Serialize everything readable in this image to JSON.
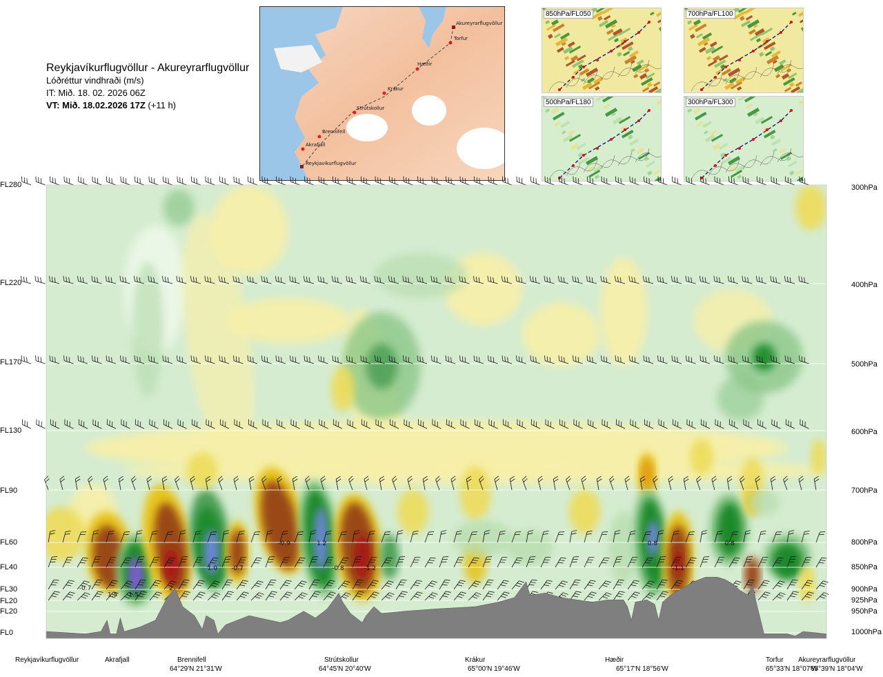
{
  "header": {
    "route": "Reykjavíkurflugvöllur - Akureyrarflugvöllur",
    "parameter": "Lóðréttur vindhraði (m/s)",
    "init_time": "IT: Mið. 18. 02. 2026 06Z",
    "valid_time": "VT: Mið. 18.02.2026 17Z",
    "lead": "(+11 h)"
  },
  "route_map": {
    "waypoints": [
      "Akureyrarflugvöllur",
      "Torfur",
      "Hæðir",
      "Krákur",
      "Strútskollur",
      "Brennifell",
      "Akrafjall",
      "Reykjavíkurflugvöllur"
    ]
  },
  "level_maps": [
    {
      "label": "850hPa/FL050"
    },
    {
      "label": "700hPa/FL100"
    },
    {
      "label": "500hPa/FL180"
    },
    {
      "label": "300hPa/FL300"
    }
  ],
  "chart_data": {
    "type": "heatmap",
    "title": "Lóðréttur vindhraði (m/s)",
    "flight_levels": [
      {
        "label": "FL280",
        "hpa": "300hPa"
      },
      {
        "label": "FL220",
        "hpa": "400hPa"
      },
      {
        "label": "FL170",
        "hpa": "500hPa"
      },
      {
        "label": "FL130",
        "hpa": "600hPa"
      },
      {
        "label": "FL90",
        "hpa": "700hPa"
      },
      {
        "label": "FL60",
        "hpa": "800hPa"
      },
      {
        "label": "FL40",
        "hpa": "850hPa"
      },
      {
        "label": "FL30",
        "hpa": "900hPa"
      },
      {
        "label": "FL20",
        "hpa": "925hPa"
      },
      {
        "label": "FL20",
        "hpa": "950hPa"
      },
      {
        "label": "FL0",
        "hpa": "1000hPa"
      }
    ],
    "locations": [
      {
        "name": "Reykjavíkurflugvöllur",
        "coord": ""
      },
      {
        "name": "Akrafjall",
        "coord": ""
      },
      {
        "name": "Brennifell",
        "coord": "64°29'N 21°31'W"
      },
      {
        "name": "Strútskollur",
        "coord": "64°45'N 20°40'W"
      },
      {
        "name": "Krákur",
        "coord": "65°00'N 19°46'W"
      },
      {
        "name": "Hæðir",
        "coord": "65°17'N 18°56'W"
      },
      {
        "name": "Torfur",
        "coord": "65°33'N 18°07'W"
      },
      {
        "name": "Akureyrarflugvöllur",
        "coord": "65°39'N 18°04'W"
      }
    ],
    "annotations": [
      {
        "text": "-0.7",
        "x": 0.05,
        "p": 895
      },
      {
        "text": "1.5",
        "x": 0.085,
        "p": 910
      },
      {
        "text": "1.5",
        "x": 0.112,
        "p": 910
      },
      {
        "text": "2",
        "x": 0.16,
        "p": 895
      },
      {
        "text": "1.0",
        "x": 0.213,
        "p": 850
      },
      {
        "text": "-0.7",
        "x": 0.245,
        "p": 850
      },
      {
        "text": "-0.9",
        "x": 0.305,
        "p": 800
      },
      {
        "text": "1.2",
        "x": 0.353,
        "p": 800
      },
      {
        "text": "-0.8",
        "x": 0.374,
        "p": 850
      },
      {
        "text": "-1.2",
        "x": 0.415,
        "p": 850
      },
      {
        "text": "0.8",
        "x": 0.777,
        "p": 800
      },
      {
        "text": "-1.1",
        "x": 0.81,
        "p": 850
      },
      {
        "text": "0.8",
        "x": 0.876,
        "p": 800
      }
    ]
  }
}
